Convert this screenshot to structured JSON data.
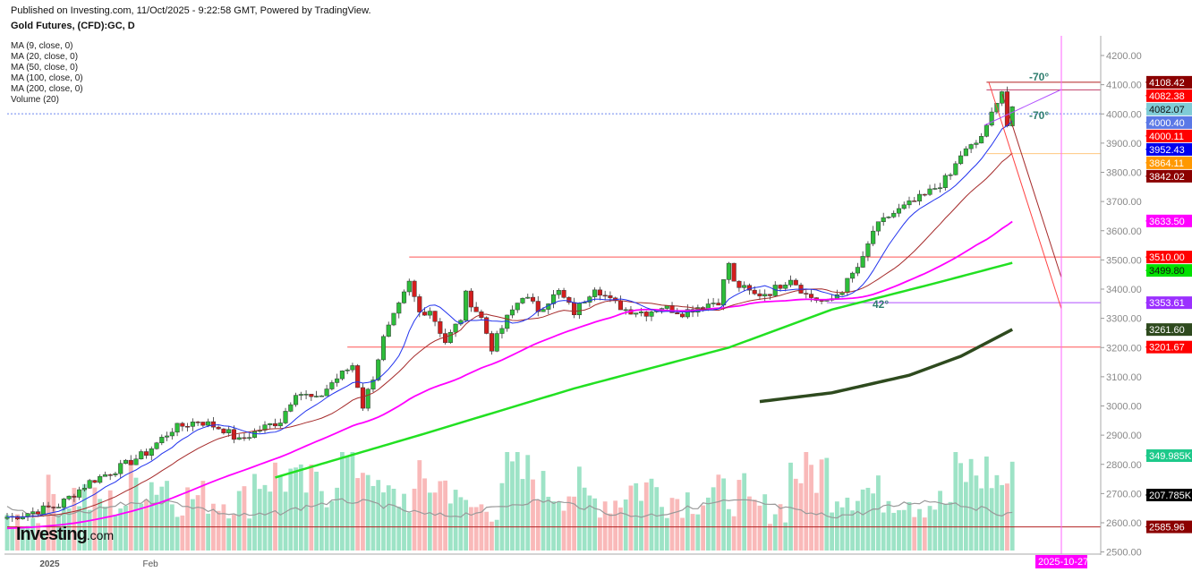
{
  "header": {
    "published": "Published on Investing.com, 11/Oct/2025 - 9:22:58 GMT, Powered by TradingView.",
    "symbol": "Gold Futures, (CFD):GC, D"
  },
  "indicators": [
    "MA (9, close, 0)",
    "MA (20, close, 0)",
    "MA (50, close, 0)",
    "MA (100, close, 0)",
    "MA (200, close, 0)",
    "Volume (20)"
  ],
  "logo": {
    "main": "Investing",
    "suffix": ".com"
  },
  "chart_data": {
    "type": "candlestick",
    "title": "Gold Futures, (CFD):GC, D",
    "ylim": [
      2500,
      4250
    ],
    "y_ticks": [
      2500,
      2600,
      2700,
      2800,
      2900,
      3000,
      3100,
      3200,
      3300,
      3400,
      3500,
      3600,
      3700,
      3800,
      3900,
      4000,
      4100,
      4200
    ],
    "y_tick_labels": [
      "2500.00",
      "2600.00",
      "2700.00",
      "2800.00",
      "2900.00",
      "3000.00",
      "3100.00",
      "3200.00",
      "3300.00",
      "3400.00",
      "3500.00",
      "3600.00",
      "3700.00",
      "3800.00",
      "3900.00",
      "4000.00",
      "4100.00",
      "4200.00"
    ],
    "x_labels": [
      {
        "bar": 7,
        "label": "2025"
      },
      {
        "bar": 27,
        "label": "Feb"
      }
    ],
    "bars_total": 196,
    "close_waypoints": [
      [
        0,
        2620
      ],
      [
        1,
        2620
      ],
      [
        10,
        2660
      ],
      [
        16,
        2740
      ],
      [
        22,
        2790
      ],
      [
        27,
        2840
      ],
      [
        32,
        2920
      ],
      [
        37,
        2950
      ],
      [
        42,
        2920
      ],
      [
        45,
        2880
      ],
      [
        49,
        2920
      ],
      [
        53,
        2950
      ],
      [
        56,
        3050
      ],
      [
        60,
        3020
      ],
      [
        63,
        3080
      ],
      [
        67,
        3140
      ],
      [
        69,
        3000
      ],
      [
        71,
        3100
      ],
      [
        73,
        3230
      ],
      [
        76,
        3340
      ],
      [
        78,
        3420
      ],
      [
        80,
        3320
      ],
      [
        82,
        3330
      ],
      [
        85,
        3220
      ],
      [
        88,
        3300
      ],
      [
        89,
        3380
      ],
      [
        92,
        3300
      ],
      [
        94,
        3200
      ],
      [
        97,
        3300
      ],
      [
        100,
        3380
      ],
      [
        103,
        3330
      ],
      [
        107,
        3390
      ],
      [
        110,
        3320
      ],
      [
        114,
        3410
      ],
      [
        117,
        3360
      ],
      [
        120,
        3330
      ],
      [
        124,
        3320
      ],
      [
        127,
        3340
      ],
      [
        131,
        3320
      ],
      [
        134,
        3340
      ],
      [
        138,
        3360
      ],
      [
        140,
        3490
      ],
      [
        141,
        3420
      ],
      [
        145,
        3380
      ],
      [
        148,
        3390
      ],
      [
        152,
        3440
      ],
      [
        155,
        3380
      ],
      [
        159,
        3350
      ],
      [
        162,
        3400
      ],
      [
        166,
        3500
      ],
      [
        168,
        3600
      ],
      [
        171,
        3650
      ],
      [
        174,
        3680
      ],
      [
        178,
        3720
      ],
      [
        181,
        3760
      ],
      [
        183,
        3790
      ],
      [
        185,
        3860
      ],
      [
        188,
        3900
      ],
      [
        190,
        3950
      ],
      [
        192,
        4050
      ],
      [
        193,
        4080
      ],
      [
        194,
        3960
      ],
      [
        195,
        4010
      ]
    ],
    "ma100_waypoints": [
      [
        52,
        2755
      ],
      [
        80,
        2900
      ],
      [
        110,
        3060
      ],
      [
        140,
        3200
      ],
      [
        160,
        3330
      ],
      [
        180,
        3420
      ],
      [
        195,
        3490
      ]
    ],
    "ma200_waypoints": [
      [
        146,
        3015
      ],
      [
        160,
        3045
      ],
      [
        175,
        3105
      ],
      [
        185,
        3170
      ],
      [
        195,
        3262
      ]
    ],
    "volume_group_levels_k": [
      120,
      210,
      180,
      260,
      200,
      190,
      280,
      240,
      330,
      200,
      250,
      160,
      280,
      230,
      190,
      240,
      200,
      210,
      160,
      300,
      230,
      210,
      180,
      290,
      260
    ],
    "volume_ma_k": 207.785,
    "price_labels": [
      {
        "value": 4108.42,
        "text": "4108.42",
        "color": "#8b0000"
      },
      {
        "value": 4082.07,
        "text": "4082.07",
        "color": "#7fcbd6",
        "dark": true
      },
      {
        "value": 4082.38,
        "text": "4082.38",
        "color": "#ff0000",
        "offset": 1
      },
      {
        "value": 4000.4,
        "text": "4000.40",
        "color": "#5b78e6",
        "offset": -1
      },
      {
        "value": 4000.11,
        "text": "4000.11",
        "color": "#ff0000",
        "offset": 2
      },
      {
        "value": 3952.43,
        "text": "3952.43",
        "color": "#0000ee",
        "offset": 2
      },
      {
        "value": 3864.11,
        "text": "3864.11",
        "color": "#ff9800"
      },
      {
        "value": 3842.02,
        "text": "3842.02",
        "color": "#8b0000",
        "offset": 1
      },
      {
        "value": 3633.5,
        "text": "3633.50",
        "color": "#ff00ff"
      },
      {
        "value": 3510.0,
        "text": "3510.00",
        "color": "#ff0000"
      },
      {
        "value": 3499.8,
        "text": "3499.80",
        "color": "#00e000",
        "dark": true,
        "offset": 1
      },
      {
        "value": 3353.61,
        "text": "3353.61",
        "color": "#9b30ff"
      },
      {
        "value": 3261.6,
        "text": "3261.60",
        "color": "#2e4a1e"
      },
      {
        "value": 3201.67,
        "text": "3201.67",
        "color": "#ff0000"
      },
      {
        "value": 2585.96,
        "text": "2585.96",
        "color": "#8b0000"
      }
    ],
    "volume_labels": [
      {
        "text": "349.985K",
        "color": "#1dc98a"
      },
      {
        "text": "207.785K",
        "color": "#000000"
      }
    ],
    "annotations": {
      "angle_top": "-70°",
      "angle_mid": "-70°",
      "angle_low": "42°",
      "date_marker": "2025-10-27"
    },
    "horizontal_lines": [
      {
        "value": 3510.0,
        "from_bar": 78,
        "color": "#ff5555"
      },
      {
        "value": 3201.67,
        "from_bar": 66,
        "color": "#ff5555"
      },
      {
        "value": 2585.96,
        "from_bar": 0,
        "color": "#b22222"
      },
      {
        "value": 3353.61,
        "from_bar": 159,
        "color": "#b04dff"
      },
      {
        "value": 3864.11,
        "from_bar": 190,
        "color": "#ffc880"
      },
      {
        "value": 4000.4,
        "from_bar": 0,
        "color": "#6f86f0",
        "dashed": true
      },
      {
        "value": 4108.42,
        "from_bar": 190,
        "color": "#b22222"
      },
      {
        "value": 4082.38,
        "from_bar": 190,
        "color": "#c0406a"
      }
    ]
  }
}
